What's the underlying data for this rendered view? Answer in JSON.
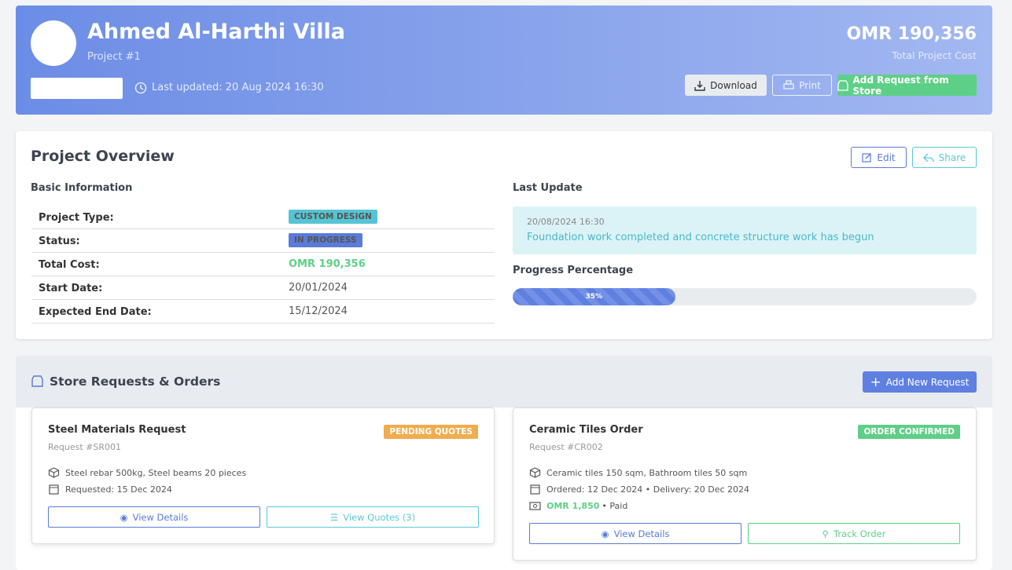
{
  "header": {
    "title": "Ahmed Al-Harthi Villa",
    "subtitle": "Project #1",
    "last_updated": "Last updated: 20 Aug 2024 16:30",
    "total": "OMR 190,356",
    "total_label": "Total Project Cost",
    "buttons": [
      "Download",
      "Print",
      "Add Request from Store"
    ]
  },
  "overview": {
    "title": "Project Overview",
    "actions": [
      "Edit",
      "Share"
    ],
    "basic_title": "Basic Information",
    "rows": [
      [
        "Project Type:",
        "CUSTOM DESIGN"
      ],
      [
        "Status:",
        "IN PROGRESS"
      ],
      [
        "Total Cost:",
        "OMR 190,356"
      ],
      [
        "Start Date:",
        "20/01/2024"
      ],
      [
        "Expected End Date:",
        "15/12/2024"
      ]
    ],
    "last_update_title": "Last Update",
    "last_update": {
      "date": "20/08/2024 16:30",
      "text": "Foundation work completed and concrete structure work has begun"
    },
    "progress_title": "Progress Percentage",
    "progress": {
      "value": 35,
      "label": "35%"
    }
  },
  "requests": {
    "title": "Store Requests & Orders",
    "add": "Add New Request",
    "cards": [
      {
        "title": "Steel Materials Request",
        "number": "Request #SR001",
        "status": "PENDING QUOTES",
        "items": "Steel rebar 500kg, Steel beams 20 pieces",
        "date": "Requested: 15 Dec 2024",
        "buttons": [
          "View Details",
          "View Quotes (3)"
        ]
      },
      {
        "title": "Ceramic Tiles Order",
        "number": "Request #CR002",
        "status": "ORDER CONFIRMED",
        "items": "Ceramic tiles 150 sqm, Bathroom tiles 50 sqm",
        "date": "Ordered: 12 Dec 2024 • Delivery: 20 Dec 2024",
        "amount": "OMR 1,850",
        "payment": "• Paid",
        "buttons": [
          "View Details",
          "Track Order"
        ]
      }
    ]
  }
}
